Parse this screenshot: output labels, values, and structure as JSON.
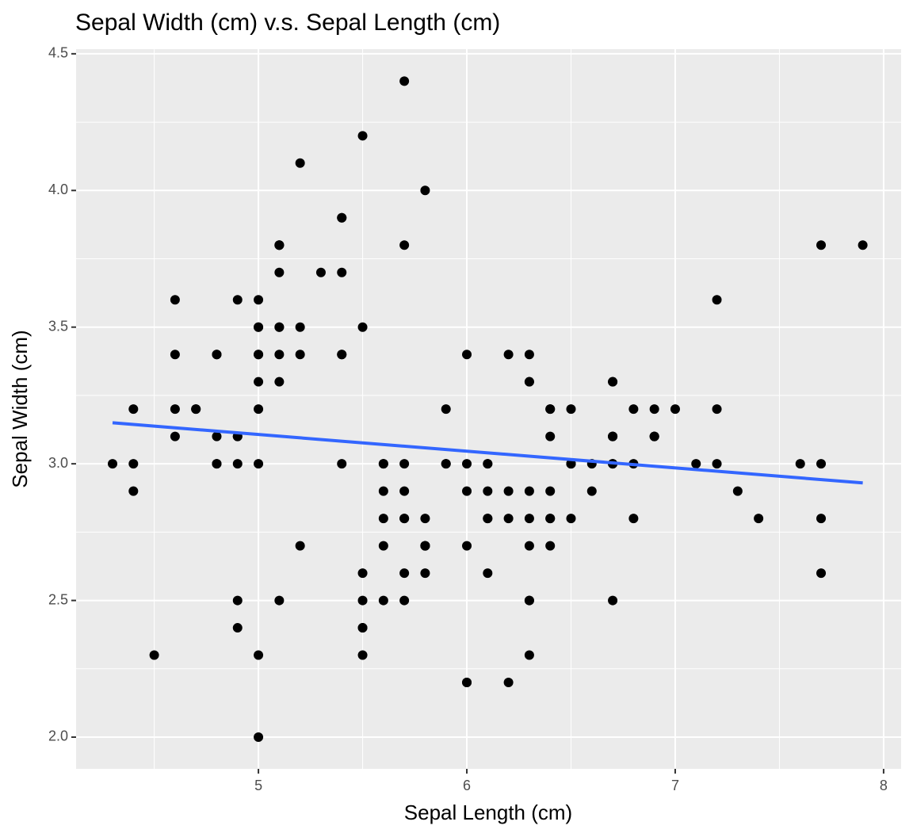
{
  "chart_data": {
    "type": "scatter",
    "title": "Sepal Width (cm) v.s. Sepal Length (cm)",
    "x_label": "Sepal Length (cm)",
    "y_label": "Sepal Width (cm)",
    "x": [
      5.1,
      4.9,
      4.7,
      4.6,
      5.0,
      5.4,
      4.6,
      5.0,
      4.4,
      4.9,
      5.4,
      4.8,
      4.8,
      4.3,
      5.8,
      5.7,
      5.4,
      5.1,
      5.7,
      5.1,
      5.4,
      5.1,
      4.6,
      5.1,
      4.8,
      5.0,
      5.0,
      5.2,
      5.2,
      4.7,
      4.8,
      5.4,
      5.2,
      5.5,
      4.9,
      5.0,
      5.5,
      4.9,
      4.4,
      5.1,
      5.0,
      4.5,
      4.4,
      5.0,
      5.1,
      4.8,
      5.1,
      4.6,
      5.3,
      5.0,
      7.0,
      6.4,
      6.9,
      5.5,
      6.5,
      5.7,
      6.3,
      4.9,
      6.6,
      5.2,
      5.0,
      5.9,
      6.0,
      6.1,
      5.6,
      6.7,
      5.6,
      5.8,
      6.2,
      5.6,
      5.9,
      6.1,
      6.3,
      6.1,
      6.4,
      6.6,
      6.8,
      6.7,
      6.0,
      5.7,
      5.5,
      5.5,
      5.8,
      6.0,
      5.4,
      6.0,
      6.7,
      6.3,
      5.6,
      5.5,
      5.5,
      6.1,
      5.8,
      5.0,
      5.6,
      5.7,
      5.7,
      6.2,
      5.1,
      5.7,
      6.3,
      5.8,
      7.1,
      6.3,
      6.5,
      7.6,
      4.9,
      7.3,
      6.7,
      7.2,
      6.5,
      6.4,
      6.8,
      5.7,
      5.8,
      6.4,
      6.5,
      7.7,
      7.7,
      6.0,
      6.9,
      5.6,
      7.7,
      6.3,
      6.7,
      7.2,
      6.2,
      6.1,
      6.4,
      7.2,
      7.4,
      7.9,
      6.4,
      6.3,
      6.1,
      7.7,
      6.3,
      6.4,
      6.0,
      6.9,
      6.7,
      6.9,
      5.8,
      6.8,
      6.7,
      6.7,
      6.3,
      6.5,
      6.2,
      5.9
    ],
    "y": [
      3.5,
      3.0,
      3.2,
      3.1,
      3.6,
      3.9,
      3.4,
      3.4,
      2.9,
      3.1,
      3.7,
      3.4,
      3.0,
      3.0,
      4.0,
      4.4,
      3.9,
      3.5,
      3.8,
      3.8,
      3.4,
      3.7,
      3.6,
      3.3,
      3.4,
      3.0,
      3.4,
      3.5,
      3.4,
      3.2,
      3.1,
      3.4,
      4.1,
      4.2,
      3.1,
      3.2,
      3.5,
      3.6,
      3.0,
      3.4,
      3.5,
      2.3,
      3.2,
      3.5,
      3.8,
      3.0,
      3.8,
      3.2,
      3.7,
      3.3,
      3.2,
      3.2,
      3.1,
      2.3,
      2.8,
      2.8,
      3.3,
      2.4,
      2.9,
      2.7,
      2.0,
      3.0,
      2.2,
      2.9,
      2.9,
      3.1,
      3.0,
      2.7,
      2.2,
      2.5,
      3.2,
      2.8,
      2.5,
      2.8,
      2.9,
      3.0,
      2.8,
      3.0,
      2.9,
      2.6,
      2.4,
      2.4,
      2.7,
      2.7,
      3.0,
      3.4,
      3.1,
      2.3,
      3.0,
      2.5,
      2.6,
      3.0,
      2.6,
      2.3,
      2.7,
      3.0,
      2.9,
      2.9,
      2.5,
      2.8,
      3.3,
      2.7,
      3.0,
      2.9,
      3.0,
      3.0,
      2.5,
      2.9,
      2.5,
      3.6,
      3.2,
      2.7,
      3.0,
      2.5,
      2.8,
      3.2,
      3.0,
      3.8,
      2.6,
      2.2,
      3.2,
      2.8,
      2.8,
      2.7,
      3.3,
      3.2,
      2.8,
      3.0,
      2.8,
      3.0,
      2.8,
      3.8,
      2.8,
      2.8,
      2.6,
      3.0,
      3.4,
      3.1,
      3.0,
      3.1,
      3.1,
      3.1,
      2.7,
      3.2,
      3.3,
      3.0,
      2.5,
      3.0,
      3.4,
      3.0
    ],
    "color": "#000000",
    "fit_line": {
      "x": [
        4.3,
        7.9
      ],
      "y": [
        3.15,
        2.93
      ],
      "color": "#3366ff"
    },
    "xlim": [
      4.125,
      8.084
    ],
    "ylim": [
      1.884,
      4.517
    ],
    "xticks": [
      5,
      6,
      7,
      8
    ],
    "yticks": [
      {
        "value": 2,
        "label": "2.0"
      },
      2.5,
      {
        "value": 3,
        "label": "3.0"
      },
      3.5,
      {
        "value": 4,
        "label": "4.0"
      },
      4.5
    ],
    "minor_xticks": [
      4.5,
      5.5,
      6.5,
      7.5
    ],
    "minor_yticks": [
      2.25,
      2.75,
      3.25,
      3.75,
      4.25
    ],
    "grid": true
  }
}
